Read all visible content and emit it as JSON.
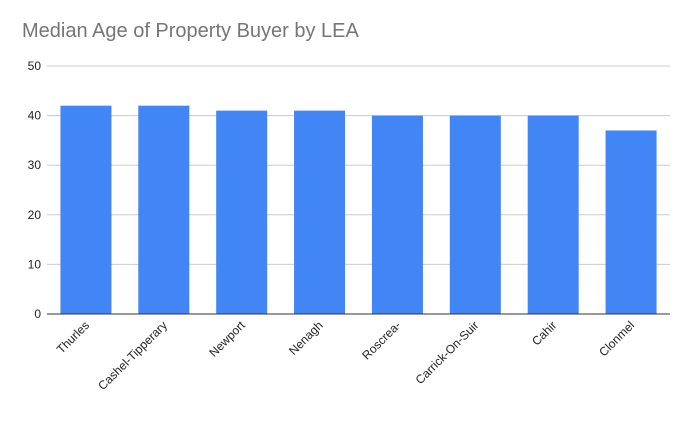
{
  "chart_data": {
    "type": "bar",
    "title": "Median Age of Property Buyer by LEA",
    "xlabel": "",
    "ylabel": "",
    "categories": [
      "Thurles",
      "Cashel-Tipperary",
      "Newport",
      "Nenagh",
      "Roscrea-",
      "Carrick-On-Suir",
      "Cahir",
      "Clonmel"
    ],
    "values": [
      42,
      42,
      41,
      41,
      40,
      40,
      40,
      37
    ],
    "ylim": [
      0,
      50
    ],
    "yticks": [
      0,
      10,
      20,
      30,
      40,
      50
    ],
    "grid": true,
    "legend": "none",
    "bar_color": "#4285f4",
    "grid_color": "#cccccc",
    "axis_color": "#333333"
  }
}
